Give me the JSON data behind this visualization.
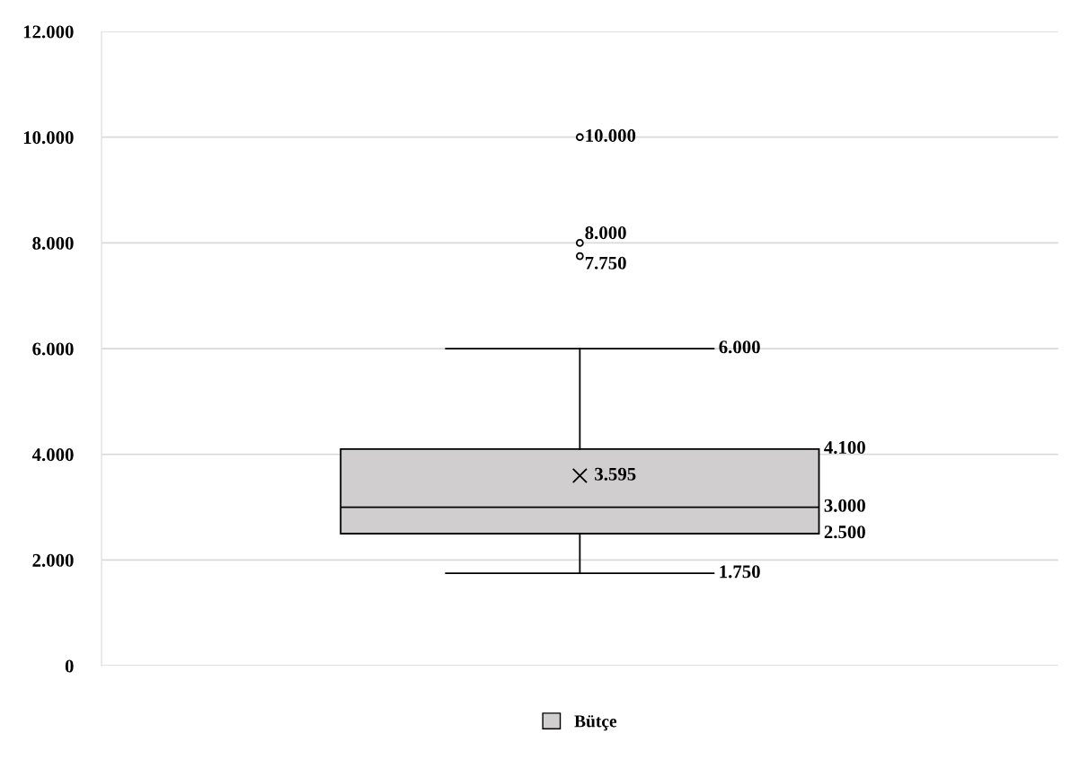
{
  "chart_data": {
    "type": "box",
    "categories": [
      null
    ],
    "series": [
      {
        "name": "Bütçe",
        "color": "#d0cecf",
        "boxes": [
          {
            "low": 1750,
            "q1": 2500,
            "median": 3000,
            "q3": 4100,
            "high": 6000,
            "mean": 3595,
            "outliers": [
              7750,
              8000,
              10000
            ]
          }
        ]
      }
    ],
    "ylim": [
      0,
      12000
    ],
    "yticks": [
      {
        "value": 0,
        "label": "0"
      },
      {
        "value": 2000,
        "label": "2.000"
      },
      {
        "value": 4000,
        "label": "4.000"
      },
      {
        "value": 6000,
        "label": "6.000"
      },
      {
        "value": 8000,
        "label": "8.000"
      },
      {
        "value": 10000,
        "label": "10.000"
      },
      {
        "value": 12000,
        "label": "12.000"
      }
    ],
    "grid": "y",
    "legend": "bottom",
    "marker": "circle",
    "annotations": [
      "10.000",
      "8.000",
      "7.750",
      "6.000",
      "4.100",
      "3.595",
      "3.000",
      "2.500",
      "1.750"
    ]
  }
}
